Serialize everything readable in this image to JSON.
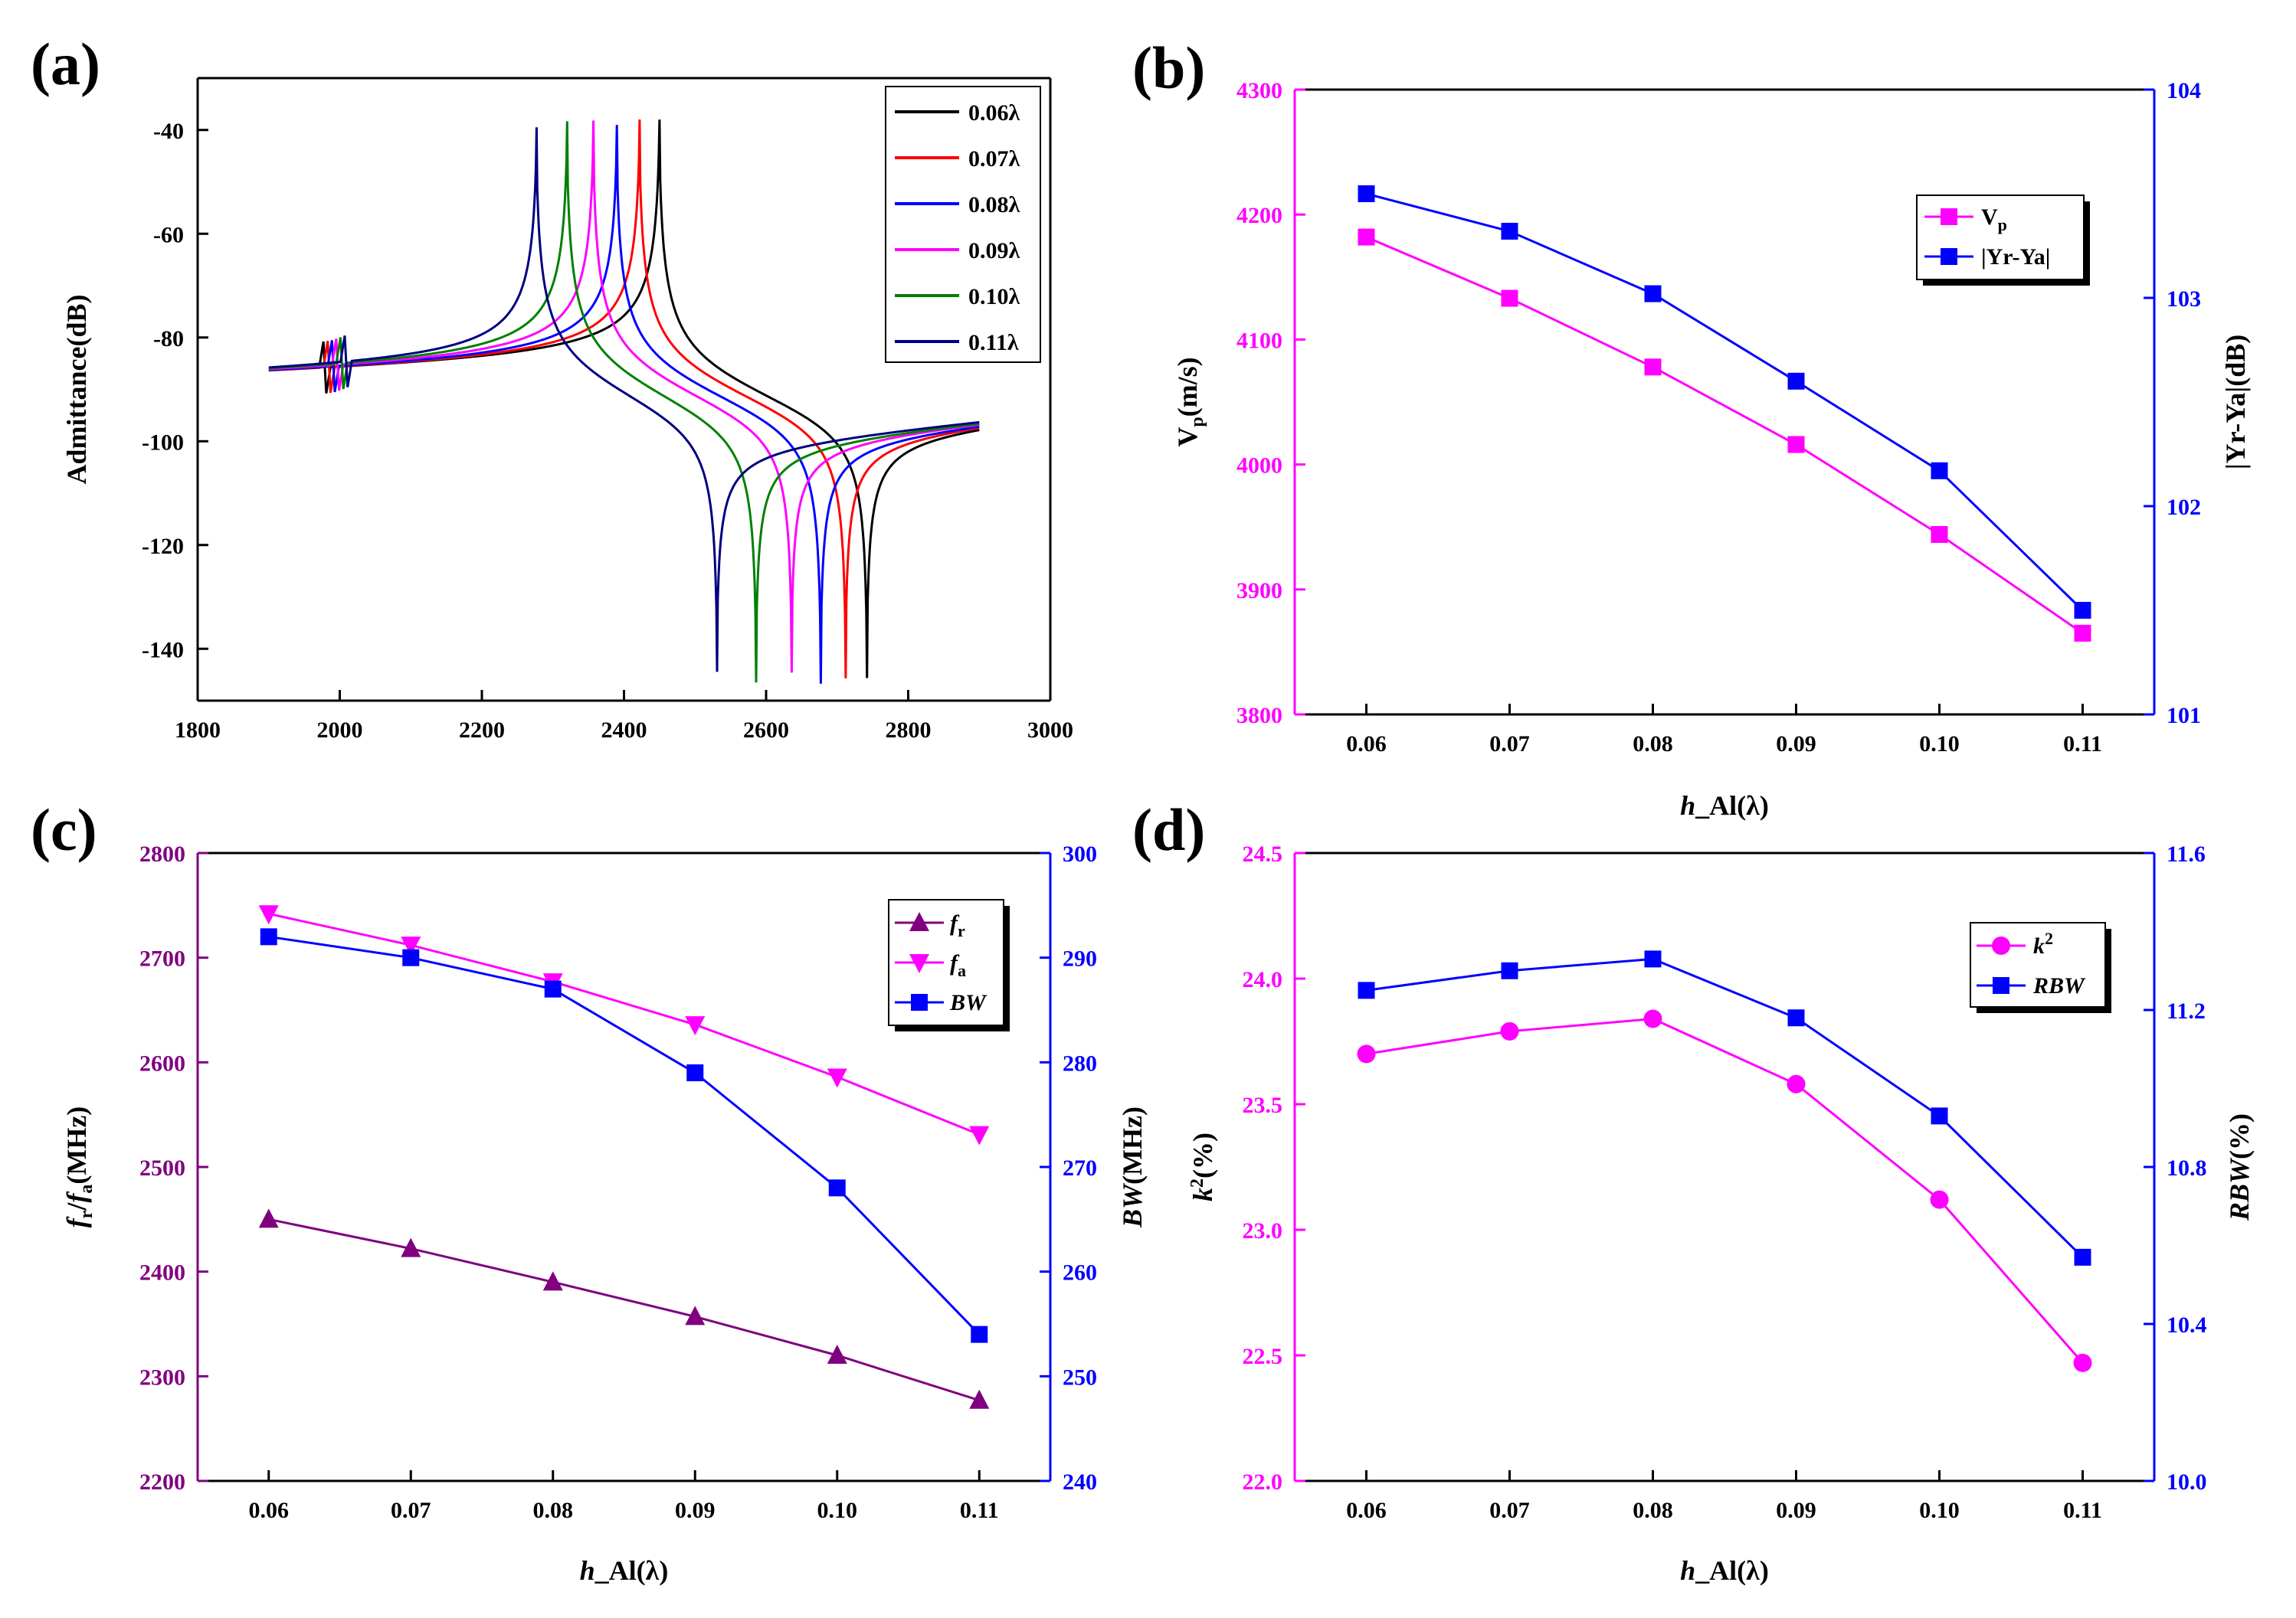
{
  "chart_data": [
    {
      "panel": "(a)",
      "type": "line",
      "xlabel": "",
      "ylabel": "Admittance(dB)",
      "xlim": [
        1800,
        3000
      ],
      "ylim": [
        -150,
        -30
      ],
      "xticks": [
        1800,
        2000,
        2200,
        2400,
        2600,
        2800,
        3000
      ],
      "yticks": [
        -140,
        -120,
        -100,
        -80,
        -60,
        -40
      ],
      "series": [
        {
          "name": "0.06λ",
          "color": "#000000",
          "fr": 2450,
          "fa": 2742,
          "peak": -39,
          "trough": -141
        },
        {
          "name": "0.07λ",
          "color": "#ff0000",
          "fr": 2422,
          "fa": 2712,
          "peak": -40,
          "trough": -141
        },
        {
          "name": "0.08λ",
          "color": "#0000ff",
          "fr": 2390,
          "fa": 2677,
          "peak": -41,
          "trough": -142
        },
        {
          "name": "0.09λ",
          "color": "#ff00ff",
          "fr": 2357,
          "fa": 2636,
          "peak": -40,
          "trough": -140
        },
        {
          "name": "0.10λ",
          "color": "#008000",
          "fr": 2320,
          "fa": 2586,
          "peak": -40,
          "trough": -142
        },
        {
          "name": "0.11λ",
          "color": "#000080",
          "fr": 2277,
          "fa": 2531,
          "peak": -41,
          "trough": -140
        }
      ]
    },
    {
      "panel": "(b)",
      "type": "line",
      "xlabel_main": "h",
      "xlabel_rest": "_Al(λ)",
      "ylabel_left_main": "V",
      "ylabel_left_sub": "p",
      "ylabel_left_rest": "(m/s)",
      "ylabel_right": "|Yr-Ya|(dB)",
      "xlim": [
        0.055,
        0.115
      ],
      "ylim_left": [
        3800,
        4300
      ],
      "ylim_right": [
        101,
        104
      ],
      "xticks": [
        "0.06",
        "0.07",
        "0.08",
        "0.09",
        "0.10",
        "0.11"
      ],
      "yticks_left": [
        "3800",
        "3900",
        "4000",
        "4100",
        "4200",
        "4300"
      ],
      "yticks_right": [
        "101",
        "102",
        "103",
        "104"
      ],
      "x": [
        0.06,
        0.07,
        0.08,
        0.09,
        0.1,
        0.11
      ],
      "series": [
        {
          "name": "V",
          "sub": "p",
          "axis": "left",
          "color": "#ff00ff",
          "marker": "square",
          "values": [
            4182,
            4133,
            4078,
            4016,
            3944,
            3865
          ]
        },
        {
          "name": "|Yr-Ya|",
          "sub": "",
          "axis": "right",
          "color": "#0000ff",
          "marker": "square",
          "values": [
            103.5,
            103.32,
            103.02,
            102.6,
            102.17,
            101.5
          ]
        }
      ]
    },
    {
      "panel": "(c)",
      "type": "line",
      "xlabel_main": "h",
      "xlabel_rest": "_Al(λ)",
      "ylabel_left": "fr/fa(MHz)",
      "ylabel_right_main": "BW",
      "ylabel_right_rest": "(MHz)",
      "xlim": [
        0.055,
        0.115
      ],
      "ylim_left": [
        2200,
        2800
      ],
      "ylim_right": [
        240,
        300
      ],
      "xticks": [
        "0.06",
        "0.07",
        "0.08",
        "0.09",
        "0.10",
        "0.11"
      ],
      "yticks_left": [
        "2200",
        "2300",
        "2400",
        "2500",
        "2600",
        "2700",
        "2800"
      ],
      "yticks_right": [
        "240",
        "250",
        "260",
        "270",
        "280",
        "290",
        "300"
      ],
      "x": [
        0.06,
        0.07,
        0.08,
        0.09,
        0.1,
        0.11
      ],
      "series": [
        {
          "name": "f",
          "sub": "r",
          "axis": "left",
          "color": "#800080",
          "marker": "triangle-up",
          "values": [
            2450,
            2422,
            2390,
            2357,
            2320,
            2277
          ]
        },
        {
          "name": "f",
          "sub": "a",
          "axis": "left",
          "color": "#ff00ff",
          "marker": "triangle-down",
          "values": [
            2742,
            2712,
            2677,
            2636,
            2586,
            2531
          ]
        },
        {
          "name": "BW",
          "sub": "",
          "axis": "right",
          "color": "#0000ff",
          "marker": "square",
          "values": [
            292,
            290,
            287,
            279,
            268,
            254
          ]
        }
      ]
    },
    {
      "panel": "(d)",
      "type": "line",
      "xlabel_main": "h",
      "xlabel_rest": "_Al(λ)",
      "ylabel_left": "k2(%)",
      "ylabel_right": "RBW(%)",
      "xlim": [
        0.055,
        0.115
      ],
      "ylim_left": [
        22.0,
        24.5
      ],
      "ylim_right": [
        10.0,
        11.6
      ],
      "xticks": [
        "0.06",
        "0.07",
        "0.08",
        "0.09",
        "0.10",
        "0.11"
      ],
      "yticks_left": [
        "22.0",
        "22.5",
        "23.0",
        "23.5",
        "24.0",
        "24.5"
      ],
      "yticks_right": [
        "10.0",
        "10.4",
        "10.8",
        "11.2",
        "11.6"
      ],
      "x": [
        0.06,
        0.07,
        0.08,
        0.09,
        0.1,
        0.11
      ],
      "series": [
        {
          "name": "k",
          "sup": "2",
          "axis": "left",
          "color": "#ff00ff",
          "marker": "circle",
          "values": [
            23.7,
            23.79,
            23.84,
            23.58,
            23.12,
            22.47
          ]
        },
        {
          "name": "RBW",
          "sup": "",
          "axis": "right",
          "color": "#0000ff",
          "marker": "square",
          "values": [
            11.25,
            11.3,
            11.33,
            11.18,
            10.93,
            10.57
          ]
        }
      ]
    }
  ]
}
